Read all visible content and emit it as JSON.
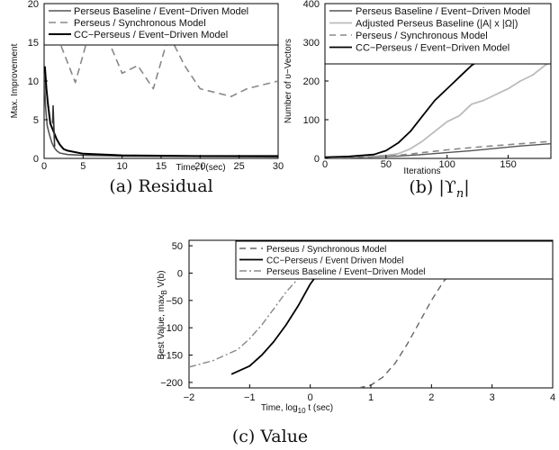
{
  "chart_data": [
    {
      "id": "a",
      "type": "line",
      "caption": "(a) Residual",
      "xlabel": "Time, t (sec)",
      "ylabel": "Max. Improvement",
      "xlim": [
        0,
        30
      ],
      "ylim": [
        0,
        20
      ],
      "xticks": [
        "0",
        "5",
        "10",
        "15",
        "20",
        "25",
        "30"
      ],
      "yticks": [
        "0",
        "5",
        "10",
        "15",
        "20"
      ],
      "legend_position": "top",
      "grid": false,
      "series": [
        {
          "name": "Perseus Baseline / Event−Driven Model",
          "color": "#555555",
          "dash": "",
          "width": 1.6,
          "x": [
            0,
            0.2,
            0.4,
            0.7,
            1.0,
            1.3,
            1.6,
            2.0,
            3.0,
            5.0,
            10.0,
            20.0,
            30.0
          ],
          "y": [
            11.0,
            6.5,
            4.2,
            3.0,
            2.0,
            1.4,
            1.0,
            0.7,
            0.5,
            0.4,
            0.3,
            0.25,
            0.2
          ]
        },
        {
          "name": "Perseus / Synchronous Model",
          "color": "#888888",
          "dash": "8,5",
          "width": 1.6,
          "x": [
            0,
            2,
            4,
            6,
            8,
            10,
            12,
            14,
            16,
            18,
            20,
            22,
            24,
            26,
            28,
            30
          ],
          "y": [
            16.5,
            15.0,
            9.8,
            17.0,
            15.8,
            11.0,
            12.0,
            9.0,
            16.0,
            12.0,
            9.0,
            8.5,
            8.0,
            9.0,
            9.5,
            10.0
          ]
        },
        {
          "name": "CC−Perseus / Event−Driven Model",
          "color": "#000000",
          "dash": "",
          "width": 2.0,
          "x": [
            0,
            0.1,
            0.3,
            0.5,
            0.8,
            1.2,
            1.6,
            2.0,
            2.5,
            3.0,
            5.0,
            10.0,
            20.0,
            30.0
          ],
          "y": [
            11.5,
            11.8,
            9.0,
            7.0,
            4.5,
            3.5,
            2.5,
            1.8,
            1.2,
            1.0,
            0.6,
            0.4,
            0.3,
            0.3
          ]
        },
        {
          "name": "",
          "color": "#333333",
          "dash": "",
          "width": 1.6,
          "x": [
            1.1,
            1.15,
            1.25,
            1.35
          ],
          "y": [
            4.5,
            6.8,
            4.2,
            1.5
          ]
        }
      ]
    },
    {
      "id": "b",
      "type": "line",
      "caption": "(b) |ϒ",
      "caption_sub": "n",
      "caption_end": "|",
      "xlabel": "Iterations",
      "ylabel": "Number of υ−Vectors",
      "xlim": [
        0,
        185
      ],
      "ylim": [
        0,
        400
      ],
      "xticks": [
        "0",
        "50",
        "100",
        "150"
      ],
      "xtick_values": [
        0,
        50,
        100,
        150
      ],
      "yticks": [
        "0",
        "100",
        "200",
        "300",
        "400"
      ],
      "legend_position": "top",
      "grid": false,
      "series": [
        {
          "name": "Perseus Baseline / Event−Driven Model",
          "color": "#555555",
          "dash": "",
          "width": 1.4,
          "x": [
            0,
            20,
            40,
            60,
            80,
            100,
            120,
            140,
            160,
            185
          ],
          "y": [
            2,
            3,
            4,
            6,
            10,
            15,
            20,
            26,
            32,
            38
          ]
        },
        {
          "name": "Adjusted Perseus Baseline (|A| x |Ω|)",
          "color": "#bbbbbb",
          "dash": "",
          "width": 1.8,
          "x": [
            0,
            30,
            50,
            60,
            70,
            80,
            90,
            100,
            110,
            120,
            130,
            140,
            150,
            160,
            170,
            180,
            185
          ],
          "y": [
            2,
            4,
            8,
            12,
            25,
            45,
            70,
            95,
            110,
            140,
            150,
            165,
            180,
            200,
            215,
            240,
            250
          ]
        },
        {
          "name": "Perseus / Synchronous Model",
          "color": "#888888",
          "dash": "7,5",
          "width": 1.6,
          "x": [
            0,
            20,
            40,
            60,
            80,
            100,
            120,
            140,
            160,
            185
          ],
          "y": [
            1,
            2,
            4,
            8,
            15,
            22,
            28,
            33,
            38,
            44
          ]
        },
        {
          "name": "CC−Perseus / Event−Driven Model",
          "color": "#000000",
          "dash": "",
          "width": 1.8,
          "x": [
            0,
            20,
            40,
            50,
            60,
            70,
            80,
            90,
            100,
            110,
            120,
            130,
            140,
            150,
            160,
            170,
            180,
            185
          ],
          "y": [
            3,
            5,
            10,
            20,
            40,
            70,
            110,
            150,
            180,
            210,
            240,
            260,
            290,
            300,
            320,
            340,
            350,
            355
          ]
        }
      ]
    },
    {
      "id": "c",
      "type": "line",
      "caption": "(c) Value",
      "xlabel": "Time, log",
      "xlabel_sub": "10",
      "xlabel_end": " t    (sec)",
      "ylabel": "Best Value, max",
      "ylabel_sub": "B",
      "ylabel_end": " V(b)",
      "xlim": [
        -2,
        4
      ],
      "ylim": [
        -210,
        60
      ],
      "xticks": [
        "−2",
        "−1",
        "0",
        "1",
        "2",
        "3",
        "4"
      ],
      "xtick_values": [
        -2,
        -1,
        0,
        1,
        2,
        3,
        4
      ],
      "yticks": [
        "50",
        "0",
        "−50",
        "−100",
        "−150",
        "−200"
      ],
      "ytick_values": [
        50,
        0,
        -50,
        -100,
        -150,
        -200
      ],
      "legend_position": "top",
      "grid": false,
      "series": [
        {
          "name": "Perseus / Synchronous Model",
          "color": "#666666",
          "dash": "7,5",
          "width": 1.4,
          "x": [
            0.8,
            1.0,
            1.2,
            1.4,
            1.6,
            1.8,
            2.0,
            2.2,
            2.4,
            2.6,
            2.8,
            3.0,
            3.5,
            4.0
          ],
          "y": [
            -210,
            -205,
            -190,
            -165,
            -130,
            -90,
            -50,
            -15,
            8,
            20,
            27,
            30,
            32,
            33
          ]
        },
        {
          "name": "CC−Perseus / Event Driven Model",
          "color": "#000000",
          "dash": "",
          "width": 1.8,
          "x": [
            -1.3,
            -1.0,
            -0.8,
            -0.6,
            -0.4,
            -0.2,
            0.0,
            0.2,
            0.4,
            0.6,
            0.8,
            1.0,
            2.0,
            3.0,
            4.0
          ],
          "y": [
            -185,
            -170,
            -150,
            -125,
            -95,
            -60,
            -20,
            10,
            22,
            27,
            29,
            30,
            30,
            30,
            30
          ]
        },
        {
          "name": "Perseus Baseline / Event−Driven Model",
          "color": "#888888",
          "dash": "8,3,2,3",
          "width": 1.4,
          "x": [
            -2.0,
            -1.6,
            -1.2,
            -1.0,
            -0.8,
            -0.6,
            -0.4,
            -0.2,
            0.0,
            0.2,
            0.5,
            1.0,
            2.0,
            3.0,
            4.0
          ],
          "y": [
            -172,
            -160,
            -140,
            -120,
            -95,
            -65,
            -35,
            -10,
            10,
            22,
            28,
            30,
            30,
            30,
            30
          ]
        }
      ]
    }
  ]
}
